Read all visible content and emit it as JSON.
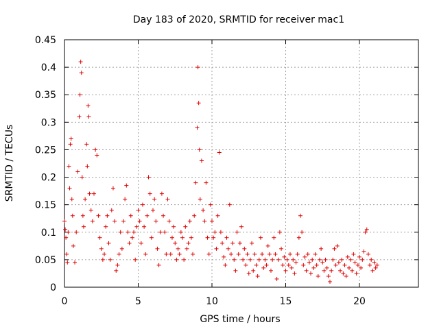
{
  "chart_data": {
    "type": "scatter",
    "title": "Day 183 of 2020, SRMTID for receiver mac1",
    "xlabel": "GPS time / hours",
    "ylabel": "SRMTID / TECUs",
    "xlim": [
      0,
      24
    ],
    "ylim": [
      0,
      0.45
    ],
    "xticks": [
      0,
      5,
      10,
      15,
      20
    ],
    "xtick_labels": [
      "0",
      "5",
      "10",
      "15",
      "20"
    ],
    "yticks": [
      0,
      0.05,
      0.1,
      0.15,
      0.2,
      0.25,
      0.3,
      0.35,
      0.4,
      0.45
    ],
    "ytick_labels": [
      "0",
      "0.05",
      "0.1",
      "0.15",
      "0.2",
      "0.25",
      "0.3",
      "0.35",
      "0.4",
      "0.45"
    ],
    "grid": true,
    "marker": "+",
    "color": "#e00000",
    "series": [
      {
        "name": "SRMTID",
        "points": [
          [
            0.0,
            0.12
          ],
          [
            0.05,
            0.105
          ],
          [
            0.1,
            0.09
          ],
          [
            0.15,
            0.06
          ],
          [
            0.2,
            0.045
          ],
          [
            0.25,
            0.1
          ],
          [
            0.3,
            0.22
          ],
          [
            0.35,
            0.18
          ],
          [
            0.4,
            0.26
          ],
          [
            0.45,
            0.27
          ],
          [
            0.5,
            0.16
          ],
          [
            0.55,
            0.13
          ],
          [
            0.6,
            0.075
          ],
          [
            0.7,
            0.045
          ],
          [
            0.8,
            0.1
          ],
          [
            0.9,
            0.21
          ],
          [
            1.0,
            0.31
          ],
          [
            1.05,
            0.35
          ],
          [
            1.1,
            0.41
          ],
          [
            1.15,
            0.39
          ],
          [
            1.2,
            0.2
          ],
          [
            1.25,
            0.13
          ],
          [
            1.3,
            0.11
          ],
          [
            1.4,
            0.16
          ],
          [
            1.5,
            0.26
          ],
          [
            1.55,
            0.22
          ],
          [
            1.6,
            0.33
          ],
          [
            1.65,
            0.31
          ],
          [
            1.7,
            0.17
          ],
          [
            1.8,
            0.14
          ],
          [
            1.9,
            0.12
          ],
          [
            2.0,
            0.17
          ],
          [
            2.1,
            0.25
          ],
          [
            2.2,
            0.24
          ],
          [
            2.3,
            0.13
          ],
          [
            2.4,
            0.09
          ],
          [
            2.5,
            0.07
          ],
          [
            2.6,
            0.05
          ],
          [
            2.7,
            0.06
          ],
          [
            2.8,
            0.11
          ],
          [
            2.9,
            0.13
          ],
          [
            3.0,
            0.08
          ],
          [
            3.1,
            0.05
          ],
          [
            3.2,
            0.14
          ],
          [
            3.3,
            0.18
          ],
          [
            3.4,
            0.12
          ],
          [
            3.5,
            0.03
          ],
          [
            3.6,
            0.04
          ],
          [
            3.7,
            0.06
          ],
          [
            3.8,
            0.1
          ],
          [
            3.9,
            0.07
          ],
          [
            4.0,
            0.12
          ],
          [
            4.1,
            0.16
          ],
          [
            4.2,
            0.185
          ],
          [
            4.3,
            0.1
          ],
          [
            4.4,
            0.08
          ],
          [
            4.5,
            0.13
          ],
          [
            4.6,
            0.09
          ],
          [
            4.7,
            0.1
          ],
          [
            4.8,
            0.05
          ],
          [
            4.9,
            0.11
          ],
          [
            5.0,
            0.14
          ],
          [
            5.1,
            0.12
          ],
          [
            5.2,
            0.08
          ],
          [
            5.3,
            0.15
          ],
          [
            5.4,
            0.11
          ],
          [
            5.5,
            0.06
          ],
          [
            5.6,
            0.13
          ],
          [
            5.7,
            0.2
          ],
          [
            5.8,
            0.17
          ],
          [
            5.9,
            0.09
          ],
          [
            6.0,
            0.14
          ],
          [
            6.1,
            0.16
          ],
          [
            6.2,
            0.12
          ],
          [
            6.3,
            0.07
          ],
          [
            6.4,
            0.04
          ],
          [
            6.5,
            0.1
          ],
          [
            6.6,
            0.17
          ],
          [
            6.7,
            0.13
          ],
          [
            6.8,
            0.1
          ],
          [
            6.9,
            0.06
          ],
          [
            7.0,
            0.16
          ],
          [
            7.1,
            0.12
          ],
          [
            7.2,
            0.06
          ],
          [
            7.3,
            0.09
          ],
          [
            7.4,
            0.11
          ],
          [
            7.5,
            0.08
          ],
          [
            7.6,
            0.05
          ],
          [
            7.7,
            0.07
          ],
          [
            7.8,
            0.06
          ],
          [
            7.9,
            0.1
          ],
          [
            8.0,
            0.09
          ],
          [
            8.1,
            0.05
          ],
          [
            8.2,
            0.11
          ],
          [
            8.3,
            0.07
          ],
          [
            8.4,
            0.08
          ],
          [
            8.5,
            0.12
          ],
          [
            8.6,
            0.09
          ],
          [
            8.7,
            0.06
          ],
          [
            8.8,
            0.13
          ],
          [
            8.9,
            0.19
          ],
          [
            9.0,
            0.29
          ],
          [
            9.05,
            0.4
          ],
          [
            9.1,
            0.335
          ],
          [
            9.15,
            0.25
          ],
          [
            9.2,
            0.16
          ],
          [
            9.3,
            0.23
          ],
          [
            9.4,
            0.14
          ],
          [
            9.5,
            0.12
          ],
          [
            9.6,
            0.19
          ],
          [
            9.7,
            0.09
          ],
          [
            9.8,
            0.06
          ],
          [
            9.9,
            0.15
          ],
          [
            10.0,
            0.12
          ],
          [
            10.1,
            0.09
          ],
          [
            10.2,
            0.1
          ],
          [
            10.3,
            0.07
          ],
          [
            10.4,
            0.13
          ],
          [
            10.5,
            0.245
          ],
          [
            10.6,
            0.1
          ],
          [
            10.7,
            0.08
          ],
          [
            10.8,
            0.055
          ],
          [
            10.9,
            0.04
          ],
          [
            11.0,
            0.09
          ],
          [
            11.1,
            0.07
          ],
          [
            11.2,
            0.15
          ],
          [
            11.3,
            0.06
          ],
          [
            11.4,
            0.08
          ],
          [
            11.5,
            0.05
          ],
          [
            11.6,
            0.03
          ],
          [
            11.7,
            0.1
          ],
          [
            11.8,
            0.06
          ],
          [
            11.9,
            0.08
          ],
          [
            12.0,
            0.11
          ],
          [
            12.1,
            0.05
          ],
          [
            12.2,
            0.07
          ],
          [
            12.3,
            0.04
          ],
          [
            12.4,
            0.06
          ],
          [
            12.5,
            0.025
          ],
          [
            12.6,
            0.05
          ],
          [
            12.7,
            0.08
          ],
          [
            12.8,
            0.03
          ],
          [
            12.9,
            0.06
          ],
          [
            13.0,
            0.04
          ],
          [
            13.1,
            0.02
          ],
          [
            13.2,
            0.05
          ],
          [
            13.3,
            0.09
          ],
          [
            13.4,
            0.06
          ],
          [
            13.5,
            0.035
          ],
          [
            13.6,
            0.05
          ],
          [
            13.7,
            0.04
          ],
          [
            13.8,
            0.075
          ],
          [
            13.9,
            0.06
          ],
          [
            14.0,
            0.03
          ],
          [
            14.1,
            0.05
          ],
          [
            14.2,
            0.09
          ],
          [
            14.3,
            0.06
          ],
          [
            14.4,
            0.015
          ],
          [
            14.5,
            0.05
          ],
          [
            14.6,
            0.1
          ],
          [
            14.7,
            0.07
          ],
          [
            14.8,
            0.04
          ],
          [
            14.9,
            0.055
          ],
          [
            15.0,
            0.03
          ],
          [
            15.1,
            0.05
          ],
          [
            15.2,
            0.04
          ],
          [
            15.3,
            0.06
          ],
          [
            15.4,
            0.035
          ],
          [
            15.5,
            0.05
          ],
          [
            15.6,
            0.025
          ],
          [
            15.7,
            0.045
          ],
          [
            15.8,
            0.06
          ],
          [
            15.9,
            0.09
          ],
          [
            16.0,
            0.13
          ],
          [
            16.1,
            0.1
          ],
          [
            16.2,
            0.04
          ],
          [
            16.3,
            0.055
          ],
          [
            16.4,
            0.03
          ],
          [
            16.5,
            0.06
          ],
          [
            16.6,
            0.045
          ],
          [
            16.7,
            0.025
          ],
          [
            16.8,
            0.05
          ],
          [
            16.9,
            0.035
          ],
          [
            17.0,
            0.06
          ],
          [
            17.1,
            0.04
          ],
          [
            17.2,
            0.02
          ],
          [
            17.3,
            0.05
          ],
          [
            17.4,
            0.07
          ],
          [
            17.5,
            0.045
          ],
          [
            17.6,
            0.03
          ],
          [
            17.7,
            0.05
          ],
          [
            17.8,
            0.035
          ],
          [
            17.9,
            0.02
          ],
          [
            18.0,
            0.01
          ],
          [
            18.1,
            0.03
          ],
          [
            18.2,
            0.05
          ],
          [
            18.3,
            0.07
          ],
          [
            18.4,
            0.04
          ],
          [
            18.5,
            0.075
          ],
          [
            18.6,
            0.045
          ],
          [
            18.7,
            0.03
          ],
          [
            18.8,
            0.05
          ],
          [
            18.9,
            0.025
          ],
          [
            19.0,
            0.04
          ],
          [
            19.1,
            0.02
          ],
          [
            19.2,
            0.055
          ],
          [
            19.3,
            0.035
          ],
          [
            19.4,
            0.05
          ],
          [
            19.5,
            0.03
          ],
          [
            19.6,
            0.06
          ],
          [
            19.7,
            0.045
          ],
          [
            19.8,
            0.025
          ],
          [
            19.9,
            0.04
          ],
          [
            20.0,
            0.055
          ],
          [
            20.1,
            0.035
          ],
          [
            20.2,
            0.05
          ],
          [
            20.3,
            0.065
          ],
          [
            20.4,
            0.1
          ],
          [
            20.5,
            0.105
          ],
          [
            20.6,
            0.06
          ],
          [
            20.7,
            0.04
          ],
          [
            20.8,
            0.05
          ],
          [
            20.9,
            0.03
          ],
          [
            21.0,
            0.045
          ],
          [
            21.1,
            0.035
          ],
          [
            21.2,
            0.04
          ]
        ]
      }
    ]
  }
}
